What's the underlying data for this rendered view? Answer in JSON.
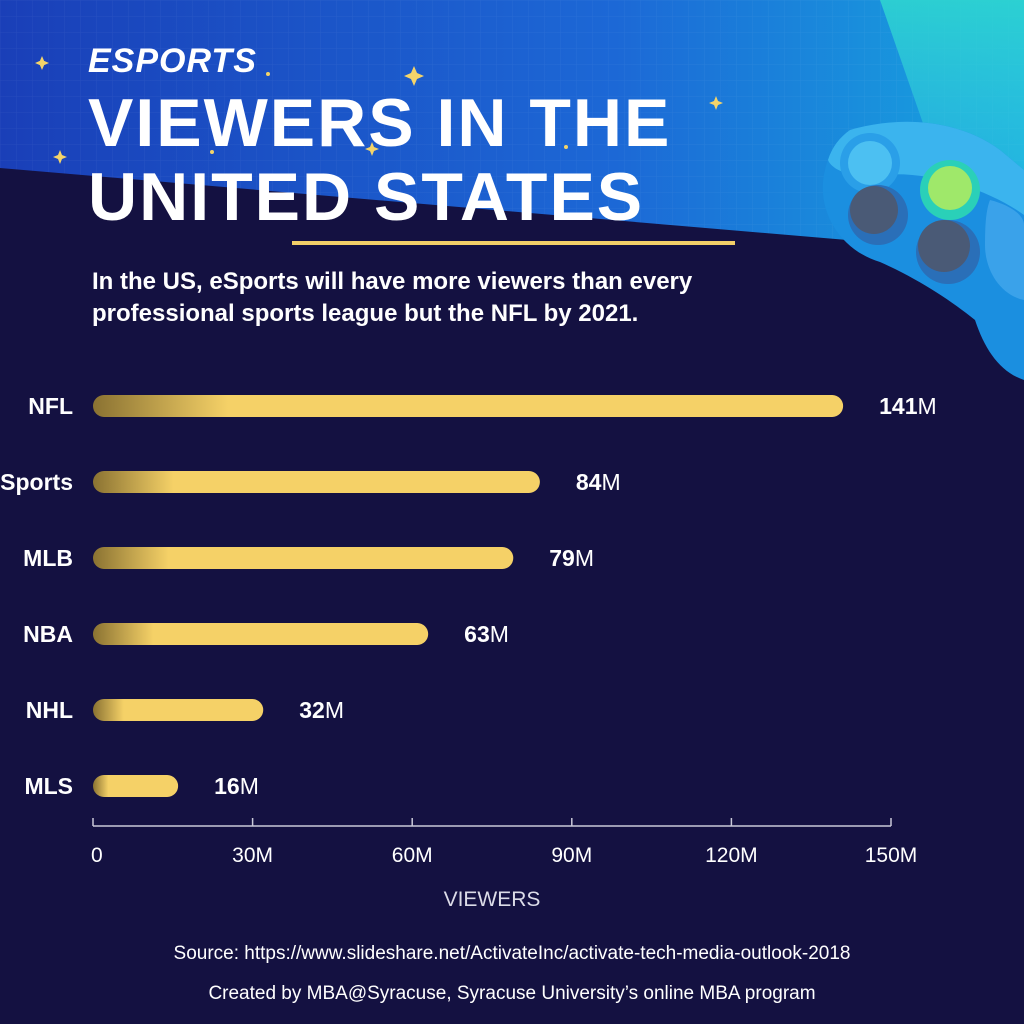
{
  "header": {
    "supertitle": "ESPORTS",
    "title": "VIEWERS IN THE UNITED STATES",
    "subtitle": "In the US, eSports will have more viewers than every professional sports league but the NFL by 2021."
  },
  "chart_data": {
    "type": "bar",
    "orientation": "horizontal",
    "categories": [
      "NFL",
      "eSports",
      "MLB",
      "NBA",
      "NHL",
      "MLS"
    ],
    "values": [
      141,
      84,
      79,
      63,
      32,
      16
    ],
    "value_labels": [
      {
        "num": "141",
        "unit": "M"
      },
      {
        "num": "84",
        "unit": "M"
      },
      {
        "num": "79",
        "unit": "M"
      },
      {
        "num": "63",
        "unit": "M"
      },
      {
        "num": "32",
        "unit": "M"
      },
      {
        "num": "16",
        "unit": "M"
      }
    ],
    "xlim": [
      0,
      150
    ],
    "xticks": [
      0,
      30,
      60,
      90,
      120,
      150
    ],
    "xtick_labels": [
      "0",
      "30M",
      "60M",
      "90M",
      "120M",
      "150M"
    ],
    "xlabel": "VIEWERS",
    "ylabel": "",
    "grid": false,
    "colors": {
      "bar": "#f5d167",
      "bar_start": "#8a7232"
    }
  },
  "footer": {
    "source": "Source: https://www.slideshare.net/ActivateInc/activate-tech-media-outlook-2018",
    "credit": "Created by MBA@Syracuse, Syracuse University’s online MBA program"
  },
  "colors": {
    "background": "#141141",
    "header_blue": "#1b5fd0",
    "accent_gold": "#f2cf68"
  },
  "decor": {
    "controller": "game-controller-icon",
    "sparkles": "sparkle-icon"
  }
}
